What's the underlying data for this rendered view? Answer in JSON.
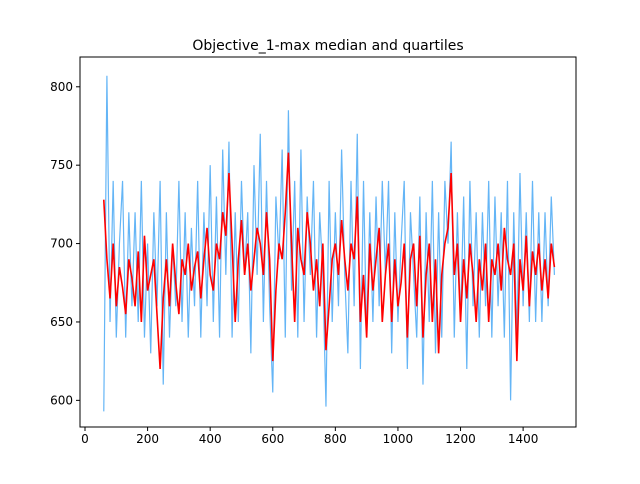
{
  "chart_data": {
    "type": "line",
    "title": "Objective_1-max median and quartiles",
    "x": [
      60,
      70,
      80,
      90,
      100,
      110,
      120,
      130,
      140,
      150,
      160,
      170,
      180,
      190,
      200,
      210,
      220,
      230,
      240,
      250,
      260,
      270,
      280,
      290,
      300,
      310,
      320,
      330,
      340,
      350,
      360,
      370,
      380,
      390,
      400,
      410,
      420,
      430,
      440,
      450,
      460,
      470,
      480,
      490,
      500,
      510,
      520,
      530,
      540,
      550,
      560,
      570,
      580,
      590,
      600,
      610,
      620,
      630,
      640,
      650,
      660,
      670,
      680,
      690,
      700,
      710,
      720,
      730,
      740,
      750,
      760,
      770,
      780,
      790,
      800,
      810,
      820,
      830,
      840,
      850,
      860,
      870,
      880,
      890,
      900,
      910,
      920,
      930,
      940,
      950,
      960,
      970,
      980,
      990,
      1000,
      1010,
      1020,
      1030,
      1040,
      1050,
      1060,
      1070,
      1080,
      1090,
      1100,
      1110,
      1120,
      1130,
      1140,
      1150,
      1160,
      1170,
      1180,
      1190,
      1200,
      1210,
      1220,
      1230,
      1240,
      1250,
      1260,
      1270,
      1280,
      1290,
      1300,
      1310,
      1320,
      1330,
      1340,
      1350,
      1360,
      1370,
      1380,
      1390,
      1400,
      1410,
      1420,
      1430,
      1440,
      1450,
      1460,
      1470,
      1480,
      1490,
      1500
    ],
    "series": [
      {
        "color": "#64b5f6",
        "values": [
          593,
          807,
          650,
          740,
          640,
          700,
          740,
          640,
          720,
          660,
          720,
          650,
          740,
          640,
          700,
          630,
          720,
          660,
          740,
          610,
          720,
          640,
          700,
          660,
          740,
          650,
          720,
          640,
          710,
          660,
          740,
          640,
          720,
          660,
          750,
          650,
          730,
          640,
          760,
          680,
          765,
          640,
          720,
          650,
          740,
          680,
          720,
          630,
          750,
          680,
          770,
          650,
          740,
          660,
          605,
          730,
          690,
          760,
          640,
          785,
          670,
          740,
          640,
          760,
          650,
          730,
          680,
          740,
          640,
          720,
          680,
          596,
          740,
          650,
          720,
          660,
          760,
          680,
          630,
          740,
          660,
          770,
          620,
          740,
          640,
          720,
          650,
          730,
          660,
          740,
          680,
          740,
          630,
          720,
          650,
          700,
          740,
          620,
          720,
          680,
          640,
          730,
          610,
          720,
          650,
          740,
          630,
          720,
          640,
          740,
          700,
          765,
          640,
          720,
          650,
          730,
          620,
          740,
          660,
          720,
          640,
          720,
          660,
          740,
          640,
          730,
          660,
          720,
          640,
          740,
          600,
          720,
          640,
          745,
          660,
          720,
          650,
          740,
          650,
          720,
          650,
          720,
          660,
          730,
          680
        ]
      },
      {
        "color": "#ff0000",
        "values": [
          728,
          690,
          665,
          700,
          660,
          685,
          672,
          655,
          690,
          678,
          660,
          695,
          650,
          705,
          670,
          680,
          690,
          655,
          620,
          665,
          690,
          660,
          700,
          675,
          655,
          690,
          680,
          700,
          670,
          685,
          695,
          665,
          690,
          710,
          680,
          670,
          700,
          690,
          720,
          705,
          745,
          700,
          650,
          690,
          715,
          680,
          700,
          670,
          690,
          710,
          700,
          680,
          720,
          690,
          625,
          670,
          700,
          690,
          720,
          758,
          700,
          650,
          710,
          690,
          680,
          720,
          700,
          670,
          690,
          660,
          700,
          632,
          660,
          690,
          700,
          680,
          715,
          690,
          670,
          700,
          690,
          730,
          650,
          680,
          640,
          700,
          670,
          690,
          710,
          650,
          680,
          700,
          650,
          690,
          660,
          675,
          700,
          640,
          690,
          700,
          660,
          705,
          640,
          680,
          700,
          650,
          690,
          630,
          680,
          700,
          710,
          745,
          680,
          700,
          650,
          690,
          665,
          700,
          680,
          650,
          690,
          670,
          700,
          650,
          690,
          680,
          700,
          670,
          710,
          690,
          680,
          700,
          625,
          690,
          670,
          705,
          660,
          695,
          680,
          700,
          670,
          690,
          665,
          700,
          685
        ]
      }
    ],
    "xlim": [
      -16,
      1569
    ],
    "xticks": [
      0,
      200,
      400,
      600,
      800,
      1000,
      1200,
      1400
    ],
    "ylim": [
      583,
      819
    ],
    "yticks": [
      600,
      650,
      700,
      750,
      800
    ]
  }
}
